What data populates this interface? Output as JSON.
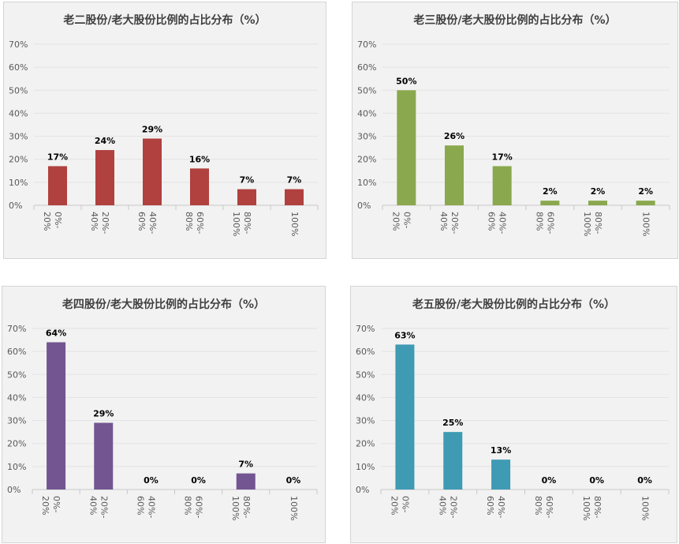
{
  "chart_data": [
    {
      "type": "bar",
      "title": "老二股份/老大股份比例的占比分布（%）",
      "categories": [
        "0%-20%",
        "20%-40%",
        "40%-60%",
        "60%-80%",
        "80%-100%",
        "100%"
      ],
      "values": [
        17,
        24,
        29,
        16,
        7,
        7
      ],
      "data_labels": [
        "17%",
        "24%",
        "29%",
        "16%",
        "7%",
        "7%"
      ],
      "y_ticks": [
        "0%",
        "10%",
        "20%",
        "30%",
        "40%",
        "50%",
        "60%",
        "70%"
      ],
      "ylim": [
        0,
        70
      ],
      "color": "#b0413e",
      "grid": true
    },
    {
      "type": "bar",
      "title": "老三股份/老大股份比例的占比分布（%）",
      "categories": [
        "0%-20%",
        "20%-40%",
        "40%-60%",
        "60%-80%",
        "80%-100%",
        "100%"
      ],
      "values": [
        50,
        26,
        17,
        2,
        2,
        2
      ],
      "data_labels": [
        "50%",
        "26%",
        "17%",
        "2%",
        "2%",
        "2%"
      ],
      "y_ticks": [
        "0%",
        "10%",
        "20%",
        "30%",
        "40%",
        "50%",
        "60%",
        "70%"
      ],
      "ylim": [
        0,
        70
      ],
      "color": "#8aa84e",
      "grid": true
    },
    {
      "type": "bar",
      "title": "老四股份/老大股份比例的占比分布（%）",
      "categories": [
        "0%-20%",
        "20%-40%",
        "40%-60%",
        "60%-80%",
        "80%-100%",
        "100%"
      ],
      "values": [
        64,
        29,
        0,
        0,
        7,
        0
      ],
      "data_labels": [
        "64%",
        "29%",
        "0%",
        "0%",
        "7%",
        "0%"
      ],
      "y_ticks": [
        "0%",
        "10%",
        "20%",
        "30%",
        "40%",
        "50%",
        "60%",
        "70%"
      ],
      "ylim": [
        0,
        70
      ],
      "color": "#735591",
      "grid": true
    },
    {
      "type": "bar",
      "title": "老五股份/老大股份比例的占比分布（%）",
      "categories": [
        "0%-20%",
        "20%-40%",
        "40%-60%",
        "60%-80%",
        "80%-100%",
        "100%"
      ],
      "values": [
        63,
        25,
        13,
        0,
        0,
        0
      ],
      "data_labels": [
        "63%",
        "25%",
        "13%",
        "0%",
        "0%",
        "0%"
      ],
      "y_ticks": [
        "0%",
        "10%",
        "20%",
        "30%",
        "40%",
        "50%",
        "60%",
        "70%"
      ],
      "ylim": [
        0,
        70
      ],
      "color": "#3e9bb3",
      "grid": true
    }
  ]
}
